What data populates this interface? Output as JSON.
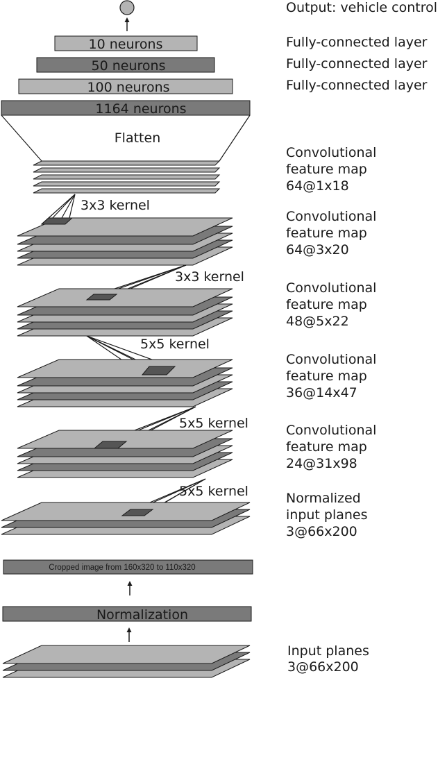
{
  "output": {
    "label": "Output: vehicle control"
  },
  "dense_layers": [
    {
      "box_text": "10 neurons",
      "side_label": "Fully-connected layer"
    },
    {
      "box_text": "50 neurons",
      "side_label": "Fully-connected layer"
    },
    {
      "box_text": "100 neurons",
      "side_label": "Fully-connected layer"
    },
    {
      "box_text": "1164 neurons",
      "side_label": ""
    }
  ],
  "flatten": {
    "label": "Flatten"
  },
  "conv_maps": [
    {
      "line1": "Convolutional",
      "line2": "feature map",
      "line3": "64@1x18"
    },
    {
      "line1": "Convolutional",
      "line2": "feature map",
      "line3": "64@3x20"
    },
    {
      "line1": "Convolutional",
      "line2": "feature map",
      "line3": "48@5x22"
    },
    {
      "line1": "Convolutional",
      "line2": "feature map",
      "line3": "36@14x47"
    },
    {
      "line1": "Convolutional",
      "line2": "feature map",
      "line3": "24@31x98"
    }
  ],
  "kernels": [
    "3x3 kernel",
    "3x3 kernel",
    "5x5 kernel",
    "5x5 kernel",
    "5x5 kernel"
  ],
  "normalized_input": {
    "line1": "Normalized",
    "line2": "input planes",
    "line3": "3@66x200"
  },
  "crop_box": {
    "text": "Cropped image from 160x320 to 110x320"
  },
  "normalization_box": {
    "text": "Normalization"
  },
  "input_planes": {
    "line1": "Input planes",
    "line2": "3@66x200"
  },
  "colors": {
    "light": "#b4b4b4",
    "dark": "#7a7a7a",
    "kernel": "#555555",
    "stroke": "#1a1a1a"
  }
}
